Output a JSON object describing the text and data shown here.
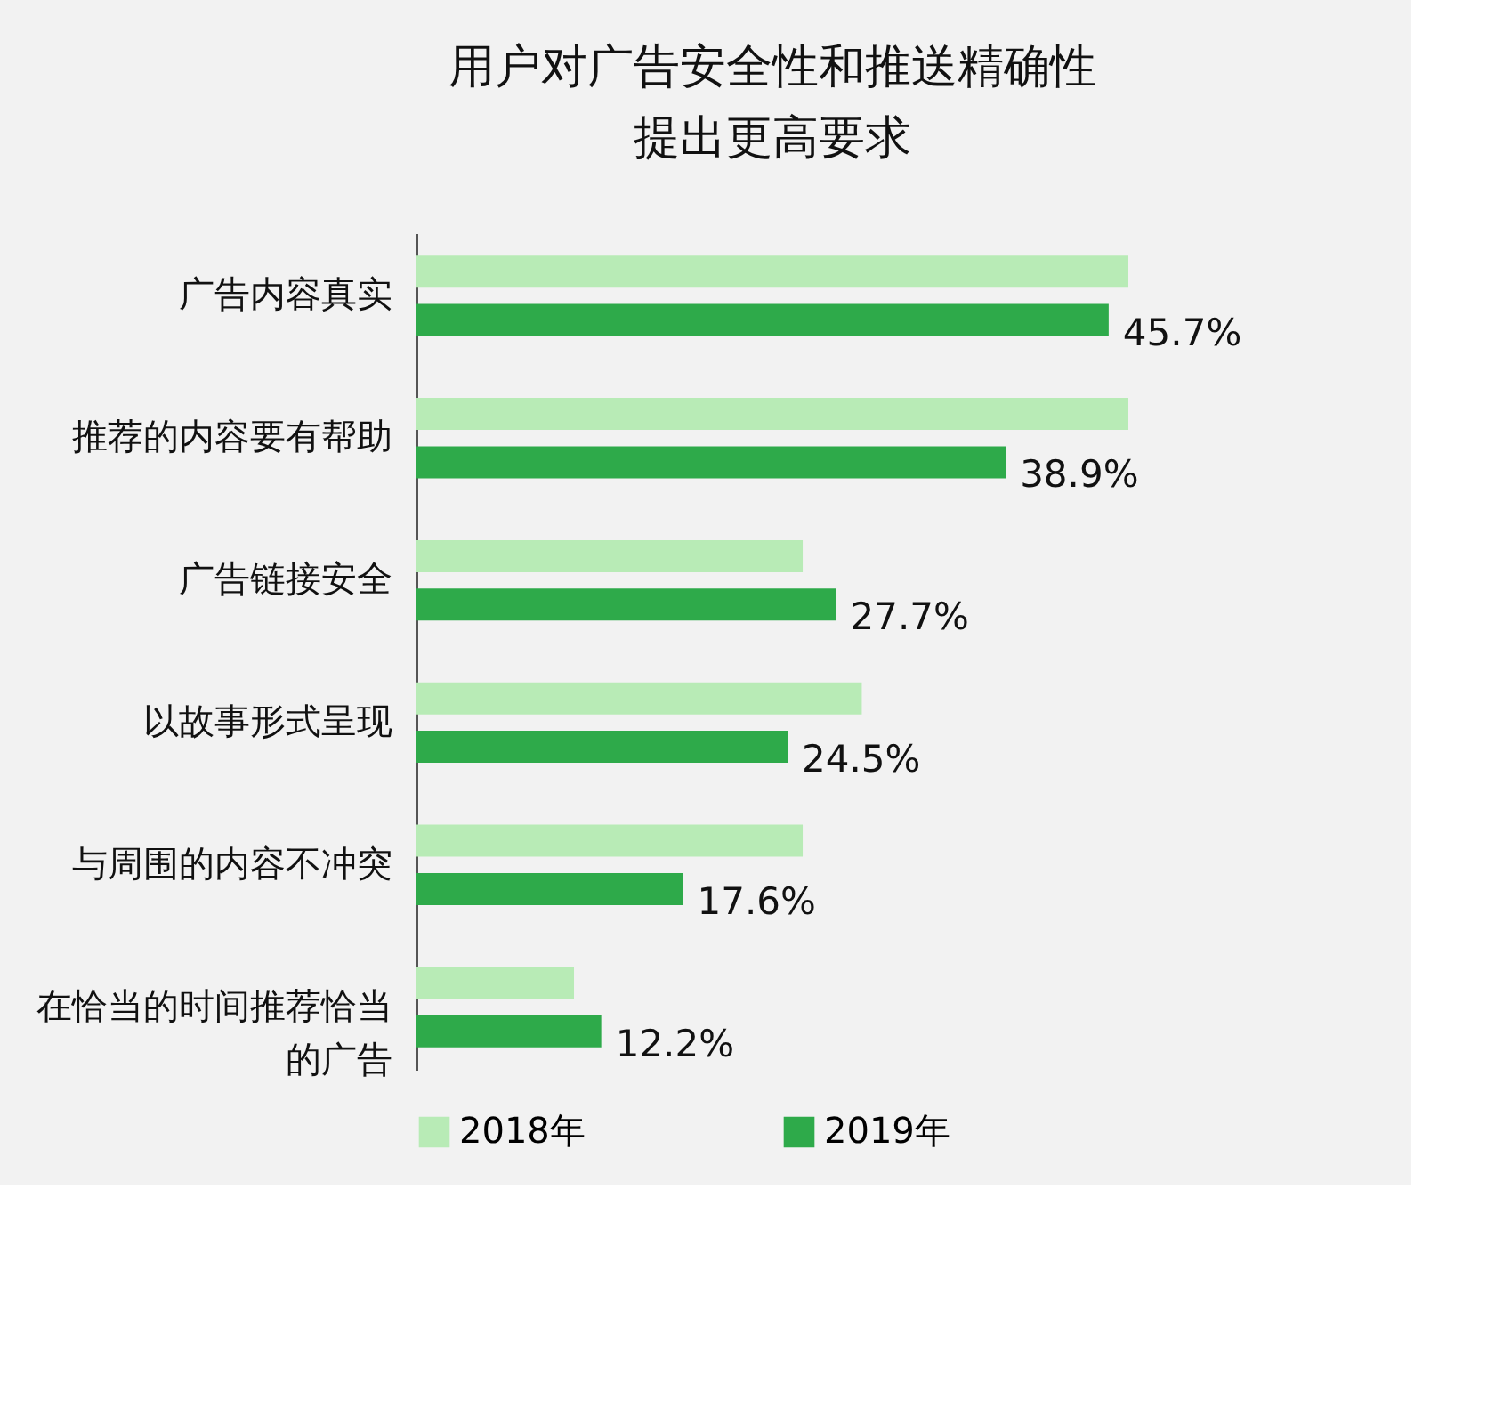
{
  "chart_data": {
    "type": "bar",
    "orientation": "horizontal",
    "title": [
      "用户对广告安全性和推送精确性",
      "提出更高要求"
    ],
    "categories": [
      "广告内容真实",
      "推荐的内容要有帮助",
      "广告链接安全",
      "以故事形式呈现",
      "与周围的内容不冲突",
      "在恰当的时间推荐恰当的广告"
    ],
    "series": [
      {
        "name": "2018年",
        "color": "#b8ebb6",
        "values": [
          47,
          47,
          25.5,
          29.4,
          25.5,
          10.4
        ]
      },
      {
        "name": "2019年",
        "color": "#2eaa4a",
        "values": [
          45.7,
          38.9,
          27.7,
          24.5,
          17.6,
          12.2
        ],
        "value_labels": [
          "45.7%",
          "38.9%",
          "27.7%",
          "24.5%",
          "17.6%",
          "12.2%"
        ]
      }
    ],
    "legend": "bottom",
    "grid": false
  }
}
